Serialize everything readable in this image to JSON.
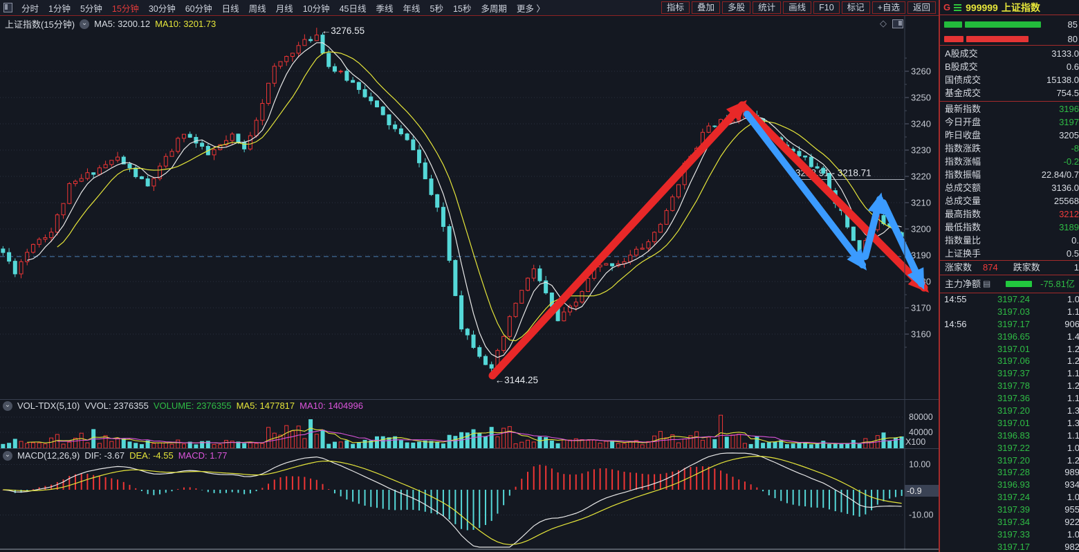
{
  "colors": {
    "up_red": "#ee3535",
    "down_cyan": "#55d8d8",
    "green": "#2fbd45",
    "red": "#f03b3b",
    "white": "#d9dde4",
    "yellow": "#e5e53a",
    "magenta": "#dd55dd",
    "gray": "#c6cad3",
    "arrow_red": "#e82828",
    "arrow_blue": "#3b9bff",
    "grid": "#2a3140",
    "dashed_line": "#4a7fb5",
    "border_red": "#a42b2b",
    "bg": "#141821"
  },
  "menu": {
    "left_items": [
      "分时",
      "1分钟",
      "5分钟",
      "15分钟",
      "30分钟",
      "60分钟",
      "日线",
      "周线",
      "月线",
      "10分钟",
      "45日线",
      "季线",
      "年线",
      "5秒",
      "15秒",
      "多周期",
      "更多 〉"
    ],
    "active_item": "15分钟",
    "right_items": [
      "指标",
      "叠加",
      "多股",
      "统计",
      "画线",
      "F10",
      "标记",
      "+自选",
      "返回"
    ]
  },
  "symbol": {
    "prefix": "G",
    "code": "999999",
    "name": "上证指数"
  },
  "main_pane": {
    "title": "上证指数(15分钟)",
    "ma5": "MA5: 3200.12",
    "ma10": "MA10: 3201.73"
  },
  "vol_pane": {
    "title": "VOL-TDX(5,10)",
    "vvol": "VVOL: 2376355",
    "volume": "VOLUME: 2376355",
    "ma5": "MA5: 1477817",
    "ma10": "MA10: 1404996",
    "unit": "X100"
  },
  "macd_pane": {
    "title": "MACD(12,26,9)",
    "dif": "DIF: -3.67",
    "dea": "DEA: -4.55",
    "macd": "MACD: 1.77",
    "badge": "-0.9"
  },
  "sidebar": {
    "gauge_rows": [
      {
        "segments": [
          26,
          110
        ],
        "color": "#23bb3c",
        "value": "85"
      },
      {
        "segments": [
          28,
          90
        ],
        "color": "#e53434",
        "value": "80"
      }
    ],
    "turnover_rows": [
      {
        "label": "A股成交",
        "value": "3133.0",
        "color": "white"
      },
      {
        "label": "B股成交",
        "value": "0.6",
        "color": "white"
      },
      {
        "label": "国债成交",
        "value": "15138.0",
        "color": "white"
      },
      {
        "label": "基金成交",
        "value": "754.5",
        "color": "white"
      }
    ],
    "index_rows": [
      {
        "label": "最新指数",
        "value": "3196",
        "color": "green"
      },
      {
        "label": "今日开盘",
        "value": "3197",
        "color": "green"
      },
      {
        "label": "昨日收盘",
        "value": "3205",
        "color": "white"
      },
      {
        "label": "指数涨跌",
        "value": "-8",
        "color": "green"
      },
      {
        "label": "指数涨幅",
        "value": "-0.2",
        "color": "green"
      },
      {
        "label": "指数振幅",
        "value": "22.84/0.7",
        "color": "white"
      },
      {
        "label": "总成交额",
        "value": "3136.0",
        "color": "white"
      },
      {
        "label": "总成交量",
        "value": "25568",
        "color": "white"
      },
      {
        "label": "最高指数",
        "value": "3212",
        "color": "red"
      },
      {
        "label": "最低指数",
        "value": "3189",
        "color": "green"
      },
      {
        "label": "指数量比",
        "value": "0.",
        "color": "white"
      },
      {
        "label": "上证换手",
        "value": "0.5",
        "color": "white"
      }
    ],
    "breadth": {
      "up_label": "涨家数",
      "up_value": "874",
      "down_label": "跌家数",
      "down_value": "1"
    },
    "main_flow": {
      "label": "主力净额",
      "value": "-75.81亿"
    },
    "ticks": [
      {
        "t": "14:55",
        "p": "3197.24",
        "v": "1.0"
      },
      {
        "t": "",
        "p": "3197.03",
        "v": "1.1"
      },
      {
        "t": "14:56",
        "p": "3197.17",
        "v": "906"
      },
      {
        "t": "",
        "p": "3196.65",
        "v": "1.4"
      },
      {
        "t": "",
        "p": "3197.01",
        "v": "1.2"
      },
      {
        "t": "",
        "p": "3197.06",
        "v": "1.2"
      },
      {
        "t": "",
        "p": "3197.37",
        "v": "1.1"
      },
      {
        "t": "",
        "p": "3197.78",
        "v": "1.2"
      },
      {
        "t": "",
        "p": "3197.36",
        "v": "1.1"
      },
      {
        "t": "",
        "p": "3197.20",
        "v": "1.3"
      },
      {
        "t": "",
        "p": "3197.01",
        "v": "1.3"
      },
      {
        "t": "",
        "p": "3196.83",
        "v": "1.1"
      },
      {
        "t": "",
        "p": "3197.22",
        "v": "1.0"
      },
      {
        "t": "",
        "p": "3197.20",
        "v": "1.2"
      },
      {
        "t": "",
        "p": "3197.28",
        "v": "989"
      },
      {
        "t": "",
        "p": "3196.93",
        "v": "934"
      },
      {
        "t": "",
        "p": "3197.24",
        "v": "1.0"
      },
      {
        "t": "",
        "p": "3197.39",
        "v": "955"
      },
      {
        "t": "",
        "p": "3197.34",
        "v": "922"
      },
      {
        "t": "",
        "p": "3197.33",
        "v": "1.0"
      },
      {
        "t": "",
        "p": "3197.17",
        "v": "982"
      }
    ]
  },
  "chart_data": [
    {
      "type": "candlestick",
      "title": "上证指数(15分钟)",
      "n": 150,
      "y_ticks": [
        3260,
        3250,
        3240,
        3230,
        3220,
        3210,
        3200,
        3190,
        3180,
        3170,
        3160
      ],
      "ylim": [
        3140,
        3281
      ],
      "price_anchors": [
        [
          0,
          3191
        ],
        [
          2,
          3184
        ],
        [
          5,
          3195
        ],
        [
          8,
          3199
        ],
        [
          11,
          3216
        ],
        [
          15,
          3222
        ],
        [
          19,
          3227
        ],
        [
          24,
          3216
        ],
        [
          30,
          3237
        ],
        [
          34,
          3228
        ],
        [
          38,
          3235
        ],
        [
          40,
          3230
        ],
        [
          45,
          3261
        ],
        [
          48,
          3268
        ],
        [
          52,
          3274
        ],
        [
          54,
          3262
        ],
        [
          59,
          3254
        ],
        [
          64,
          3240
        ],
        [
          68,
          3231
        ],
        [
          71,
          3213
        ],
        [
          73,
          3201
        ],
        [
          76,
          3163
        ],
        [
          78,
          3156
        ],
        [
          81,
          3146
        ],
        [
          85,
          3172
        ],
        [
          88,
          3185
        ],
        [
          92,
          3165
        ],
        [
          95,
          3172
        ],
        [
          98,
          3185
        ],
        [
          103,
          3188
        ],
        [
          107,
          3195
        ],
        [
          110,
          3206
        ],
        [
          113,
          3224
        ],
        [
          116,
          3236
        ],
        [
          118,
          3240
        ],
        [
          122,
          3243
        ],
        [
          123,
          3246
        ],
        [
          125,
          3241
        ],
        [
          127,
          3236
        ],
        [
          130,
          3230
        ],
        [
          133,
          3227
        ],
        [
          136,
          3220
        ],
        [
          139,
          3206
        ],
        [
          142,
          3191
        ],
        [
          145,
          3204
        ],
        [
          147,
          3202
        ],
        [
          149,
          3197
        ]
      ],
      "high_point": {
        "index": 52,
        "price": 3276.55,
        "label": "←3276.55"
      },
      "low_point": {
        "index": 81,
        "price": 3144.25,
        "label": "←3144.25"
      },
      "last_close": 3197.17,
      "ma5_last": 3200.12,
      "ma10_last": 3201.73,
      "level_line": {
        "text": "3218.91 - 3218.71",
        "price": 3218.8
      },
      "dashed_level": 3189.5,
      "arrows": {
        "red": [
          [
            [
              712,
              521
            ],
            [
              1073,
              130
            ]
          ],
          [
            [
              1073,
              130
            ],
            [
              1336,
              394
            ]
          ]
        ],
        "blue": [
          [
            [
              1080,
              143
            ],
            [
              1247,
              361
            ]
          ],
          [
            [
              1251,
              349
            ],
            [
              1272,
              266
            ]
          ],
          [
            [
              1277,
              271
            ],
            [
              1332,
              388
            ]
          ]
        ]
      }
    },
    {
      "type": "bar",
      "title": "VOL-TDX(5,10)",
      "latest_volume": 2376355,
      "ma5": 1477817,
      "ma10": 1404996,
      "y_ticks": [
        80000,
        40000
      ],
      "unit": "X100",
      "spike_ranges": [
        [
          8,
          20,
          1.5
        ],
        [
          44,
          53,
          2.8
        ],
        [
          60,
          66,
          1.6
        ],
        [
          74,
          84,
          2.7
        ],
        [
          90,
          96,
          1.5
        ],
        [
          108,
          122,
          1.9
        ],
        [
          143,
          149,
          1.7
        ]
      ]
    },
    {
      "type": "macd",
      "params": [
        12,
        26,
        9
      ],
      "dif": -3.67,
      "dea": -4.55,
      "macd": 1.77,
      "y_ticks": [
        10.0,
        -10.0
      ],
      "badge": -0.9
    }
  ]
}
